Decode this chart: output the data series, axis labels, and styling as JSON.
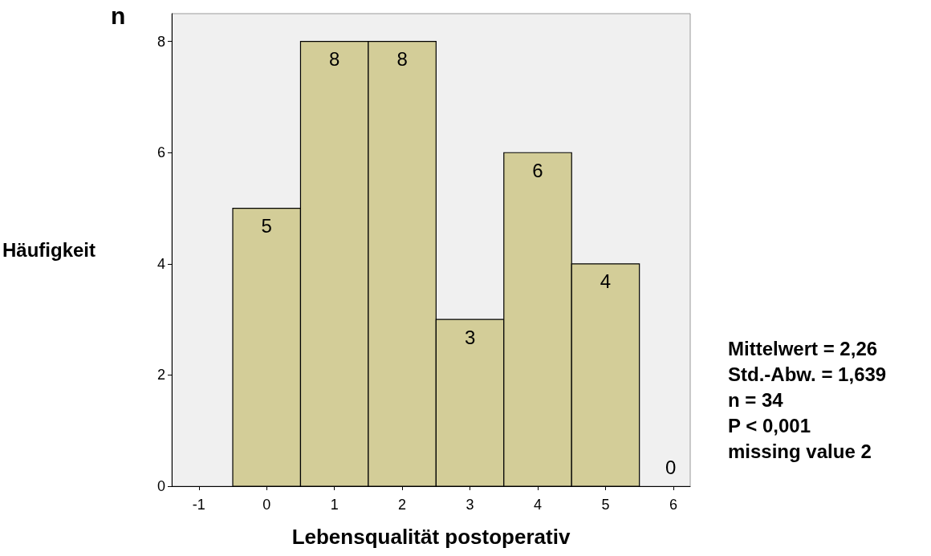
{
  "chart_data": {
    "type": "histogram",
    "xlabel": "Lebensqualität postoperativ",
    "ylabel": "Häufigkeit",
    "bins": [
      -0.5,
      0.5,
      1.5,
      2.5,
      3.5,
      4.5,
      5.5
    ],
    "values": [
      5,
      8,
      8,
      3,
      6,
      4
    ],
    "value_labels": [
      "5",
      "8",
      "8",
      "3",
      "6",
      "4"
    ],
    "color": "#d3cd98",
    "xlim": [
      -1.4,
      6.25
    ],
    "xticks": [
      -1,
      0,
      1,
      2,
      3,
      4,
      5,
      6
    ],
    "ylim": [
      0,
      8.5
    ],
    "yticks": [
      0,
      2,
      4,
      6,
      8
    ],
    "grid": false,
    "annotations": [
      "n",
      "0",
      "Mittelwert = 2,26",
      "Std.-Abw. = 1,639",
      "n = 34",
      "P < 0,001",
      "missing value 2"
    ]
  }
}
